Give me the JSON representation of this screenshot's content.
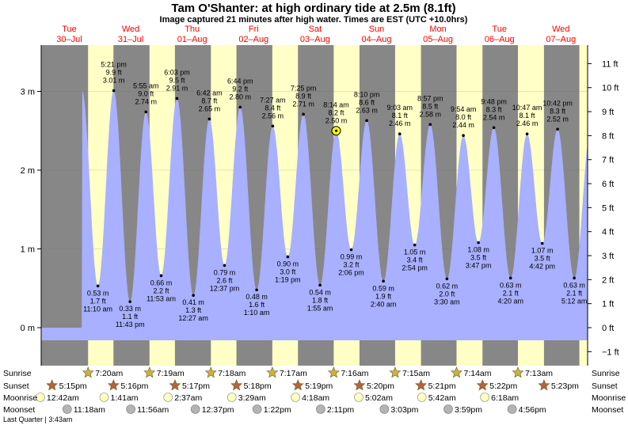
{
  "header": {
    "title": "Tam O'Shanter: at high  ordinary tide at 2.5m (8.1ft)",
    "subtitle": "Image captured 21 minutes after high water. Times are EST (UTC +10.0hrs)"
  },
  "colors": {
    "night": "#878787",
    "day": "#ffffc6",
    "tide": "#a8b0ff",
    "day_label": "#ff0000",
    "sunrise_star": "#c8b43c",
    "sunset_star": "#b4643c",
    "moonrise": "#ffffc0",
    "moonset": "#b4b4b4"
  },
  "chart_data": {
    "type": "area",
    "x_unit": "day (Tue 30 Jul 00:00 = 0)",
    "y_unit": "metres",
    "ylim": [
      -0.55,
      3.55
    ],
    "left_axis": {
      "ticks": [
        0,
        1,
        2,
        3
      ],
      "labels": [
        "0 m",
        "1 m",
        "2 m",
        "3 m"
      ]
    },
    "right_axis": {
      "ticks_ft": [
        -1,
        0,
        1,
        2,
        3,
        4,
        5,
        6,
        7,
        8,
        9,
        10,
        11
      ],
      "labels": [
        "−1 ft",
        "0 ft",
        "1 ft",
        "2 ft",
        "3 ft",
        "4 ft",
        "5 ft",
        "6 ft",
        "7 ft",
        "8 ft",
        "9 ft",
        "10 ft",
        "11 ft"
      ]
    },
    "days": [
      {
        "dow": "Tue",
        "date": "30–Jul",
        "x": 0
      },
      {
        "dow": "Wed",
        "date": "31–Jul",
        "x": 1
      },
      {
        "dow": "Thu",
        "date": "01–Aug",
        "x": 2
      },
      {
        "dow": "Fri",
        "date": "02–Aug",
        "x": 3
      },
      {
        "dow": "Sat",
        "date": "03–Aug",
        "x": 4
      },
      {
        "dow": "Sun",
        "date": "04–Aug",
        "x": 5
      },
      {
        "dow": "Mon",
        "date": "05–Aug",
        "x": 6
      },
      {
        "dow": "Tue",
        "date": "06–Aug",
        "x": 7
      },
      {
        "dow": "Wed",
        "date": "07–Aug",
        "x": 8
      }
    ],
    "daylight": [
      {
        "rise": 0.3056,
        "set": 0.7188
      },
      {
        "rise": 1.3049,
        "set": 1.7194
      },
      {
        "rise": 2.3042,
        "set": 2.7201
      },
      {
        "rise": 3.3035,
        "set": 3.7208
      },
      {
        "rise": 4.3028,
        "set": 4.7222
      },
      {
        "rise": 5.3021,
        "set": 5.7229
      },
      {
        "rise": 6.3014,
        "set": 6.7236
      },
      {
        "rise": 7.3007,
        "set": 7.7243
      },
      {
        "rise": 8.3,
        "set": 8.725
      }
    ],
    "tides": [
      {
        "type": "low",
        "time": "11:10 am",
        "x": 0.4653,
        "m": "0.53 m",
        "ft": "1.7 ft",
        "value": 0.53
      },
      {
        "type": "high",
        "time": "5:21 pm",
        "x": 0.7229,
        "m": "3.01 m",
        "ft": "9.9 ft",
        "value": 3.01
      },
      {
        "type": "low",
        "time": "11:43 pm",
        "x": 0.9882,
        "m": "0.33 m",
        "ft": "1.1 ft",
        "value": 0.33
      },
      {
        "type": "high",
        "time": "5:55 am",
        "x": 1.2465,
        "m": "2.74 m",
        "ft": "9.0 ft",
        "value": 2.74
      },
      {
        "type": "low",
        "time": "11:53 am",
        "x": 1.4951,
        "m": "0.66 m",
        "ft": "2.2 ft",
        "value": 0.66
      },
      {
        "type": "high",
        "time": "6:03 pm",
        "x": 1.7521,
        "m": "2.91 m",
        "ft": "9.5 ft",
        "value": 2.91
      },
      {
        "type": "low",
        "time": "12:27 am",
        "x": 2.0188,
        "m": "0.41 m",
        "ft": "1.3 ft",
        "value": 0.41
      },
      {
        "type": "high",
        "time": "6:42 am",
        "x": 2.2792,
        "m": "2.65 m",
        "ft": "8.7 ft",
        "value": 2.65
      },
      {
        "type": "low",
        "time": "12:37 pm",
        "x": 2.5257,
        "m": "0.79 m",
        "ft": "2.6 ft",
        "value": 0.79
      },
      {
        "type": "high",
        "time": "6:44 pm",
        "x": 2.7806,
        "m": "2.80 m",
        "ft": "9.2 ft",
        "value": 2.8
      },
      {
        "type": "low",
        "time": "1:10 am",
        "x": 3.0486,
        "m": "0.48 m",
        "ft": "1.6 ft",
        "value": 0.48
      },
      {
        "type": "high",
        "time": "7:27 am",
        "x": 3.3104,
        "m": "2.56 m",
        "ft": "8.4 ft",
        "value": 2.56
      },
      {
        "type": "low",
        "time": "1:19 pm",
        "x": 3.5549,
        "m": "0.90 m",
        "ft": "3.0 ft",
        "value": 0.9
      },
      {
        "type": "high",
        "time": "7:25 pm",
        "x": 3.809,
        "m": "2.71 m",
        "ft": "8.9 ft",
        "value": 2.71
      },
      {
        "type": "low",
        "time": "1:55 am",
        "x": 4.0799,
        "m": "0.54 m",
        "ft": "1.8 ft",
        "value": 0.54
      },
      {
        "type": "high",
        "time": "8:14 am",
        "x": 4.3431,
        "m": "2.50 m",
        "ft": "8.2 ft",
        "value": 2.5,
        "current": true
      },
      {
        "type": "low",
        "time": "2:06 pm",
        "x": 4.5875,
        "m": "0.99 m",
        "ft": "3.2 ft",
        "value": 0.99
      },
      {
        "type": "high",
        "time": "8:10 pm",
        "x": 4.8403,
        "m": "2.63 m",
        "ft": "8.6 ft",
        "value": 2.63
      },
      {
        "type": "low",
        "time": "2:40 am",
        "x": 5.1111,
        "m": "0.59 m",
        "ft": "1.9 ft",
        "value": 0.59
      },
      {
        "type": "high",
        "time": "9:03 am",
        "x": 5.3771,
        "m": "2.46 m",
        "ft": "8.1 ft",
        "value": 2.46
      },
      {
        "type": "low",
        "time": "2:54 pm",
        "x": 5.6208,
        "m": "1.05 m",
        "ft": "3.4 ft",
        "value": 1.05
      },
      {
        "type": "high",
        "time": "8:57 pm",
        "x": 5.8729,
        "m": "2.58 m",
        "ft": "8.5 ft",
        "value": 2.58
      },
      {
        "type": "low",
        "time": "3:30 am",
        "x": 6.1458,
        "m": "0.62 m",
        "ft": "2.0 ft",
        "value": 0.62
      },
      {
        "type": "high",
        "time": "9:54 am",
        "x": 6.4125,
        "m": "2.44 m",
        "ft": "8.0 ft",
        "value": 2.44
      },
      {
        "type": "low",
        "time": "3:47 pm",
        "x": 6.6576,
        "m": "1.08 m",
        "ft": "3.5 ft",
        "value": 1.08
      },
      {
        "type": "high",
        "time": "9:48 pm",
        "x": 6.9083,
        "m": "2.54 m",
        "ft": "8.3 ft",
        "value": 2.54
      },
      {
        "type": "low",
        "time": "4:20 am",
        "x": 7.1806,
        "m": "0.63 m",
        "ft": "2.1 ft",
        "value": 0.63
      },
      {
        "type": "high",
        "time": "10:47 am",
        "x": 7.4493,
        "m": "2.46 m",
        "ft": "8.1 ft",
        "value": 2.46
      },
      {
        "type": "low",
        "time": "4:42 pm",
        "x": 7.6958,
        "m": "1.07 m",
        "ft": "3.5 ft",
        "value": 1.07
      },
      {
        "type": "high",
        "time": "10:42 pm",
        "x": 7.9458,
        "m": "2.52 m",
        "ft": "8.3 ft",
        "value": 2.52
      },
      {
        "type": "low",
        "time": "5:12 am",
        "x": 8.2167,
        "m": "0.63 m",
        "ft": "2.1 ft",
        "value": 0.63
      }
    ],
    "sunrise": [
      {
        "x": 0.3056,
        "label": "7:20am"
      },
      {
        "x": 1.3049,
        "label": "7:19am"
      },
      {
        "x": 2.3042,
        "label": "7:18am"
      },
      {
        "x": 3.3035,
        "label": "7:17am"
      },
      {
        "x": 4.3028,
        "label": "7:16am"
      },
      {
        "x": 5.3021,
        "label": "7:15am"
      },
      {
        "x": 6.3014,
        "label": "7:14am"
      },
      {
        "x": 7.3007,
        "label": "7:13am"
      }
    ],
    "sunset": [
      {
        "x": -0.2813,
        "label": "5:15pm"
      },
      {
        "x": 0.7194,
        "label": "5:16pm"
      },
      {
        "x": 1.7201,
        "label": "5:17pm"
      },
      {
        "x": 2.7208,
        "label": "5:18pm"
      },
      {
        "x": 3.7215,
        "label": "5:19pm"
      },
      {
        "x": 4.7222,
        "label": "5:20pm"
      },
      {
        "x": 5.7229,
        "label": "5:21pm"
      },
      {
        "x": 6.7236,
        "label": "5:22pm"
      },
      {
        "x": 7.7243,
        "label": "5:23pm"
      }
    ],
    "moonrise": [
      {
        "x": -0.4715,
        "label": "12:42am"
      },
      {
        "x": 0.5674,
        "label": "1:41am"
      },
      {
        "x": 1.6069,
        "label": "2:37am"
      },
      {
        "x": 2.6451,
        "label": "3:29am"
      },
      {
        "x": 3.6813,
        "label": "4:18am"
      },
      {
        "x": 4.7097,
        "label": "5:02am"
      },
      {
        "x": 5.7375,
        "label": "5:42am"
      },
      {
        "x": 6.7611,
        "label": "6:18am"
      }
    ],
    "moonset": [
      {
        "x": -0.0347,
        "label": "11:18am"
      },
      {
        "x": 1.0007,
        "label": "11:56am"
      },
      {
        "x": 2.0514,
        "label": "12:37pm"
      },
      {
        "x": 3.0569,
        "label": "1:22pm"
      },
      {
        "x": 4.0903,
        "label": "2:11pm"
      },
      {
        "x": 5.1271,
        "label": "3:03pm"
      },
      {
        "x": 6.166,
        "label": "3:59pm"
      },
      {
        "x": 7.2056,
        "label": "4:56pm"
      }
    ],
    "row_labels": {
      "sunrise": "Sunrise",
      "sunset": "Sunset",
      "moonrise": "Moonrise",
      "moonset": "Moonset"
    },
    "moon_phase": "Last Quarter | 3:43am",
    "data_end_x": 8.43
  }
}
